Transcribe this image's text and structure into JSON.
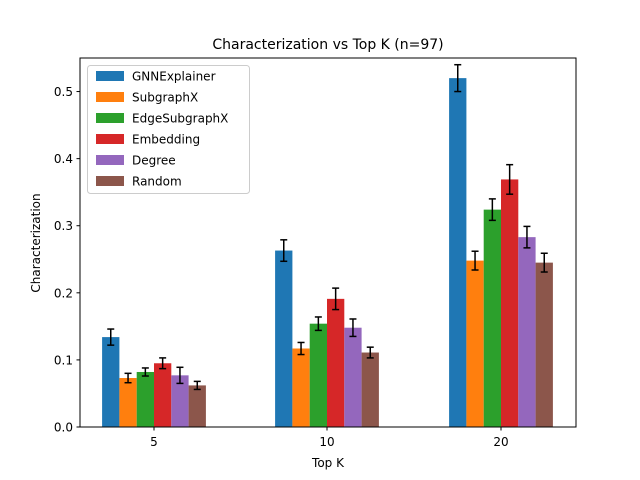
{
  "chart_data": {
    "type": "bar",
    "title": "Characterization vs Top K (n=97)",
    "xlabel": "Top K",
    "ylabel": "Characterization",
    "categories": [
      "5",
      "10",
      "20"
    ],
    "ylim": [
      0,
      0.55
    ],
    "yticks": [
      0.0,
      0.1,
      0.2,
      0.3,
      0.4,
      0.5
    ],
    "ytick_labels": [
      "0.0",
      "0.1",
      "0.2",
      "0.3",
      "0.4",
      "0.5"
    ],
    "grid": false,
    "legend_position": "top-left",
    "series": [
      {
        "name": "GNNExplainer",
        "color": "#1f77b4",
        "values": [
          0.134,
          0.263,
          0.52
        ],
        "errors": [
          0.012,
          0.016,
          0.02
        ]
      },
      {
        "name": "SubgraphX",
        "color": "#ff7f0e",
        "values": [
          0.073,
          0.117,
          0.248
        ],
        "errors": [
          0.007,
          0.009,
          0.014
        ]
      },
      {
        "name": "EdgeSubgraphX",
        "color": "#2ca02c",
        "values": [
          0.082,
          0.154,
          0.324
        ],
        "errors": [
          0.006,
          0.01,
          0.016
        ]
      },
      {
        "name": "Embedding",
        "color": "#d62728",
        "values": [
          0.095,
          0.191,
          0.369
        ],
        "errors": [
          0.008,
          0.016,
          0.022
        ]
      },
      {
        "name": "Degree",
        "color": "#9467bd",
        "values": [
          0.077,
          0.148,
          0.283
        ],
        "errors": [
          0.012,
          0.013,
          0.016
        ]
      },
      {
        "name": "Random",
        "color": "#8c564b",
        "values": [
          0.062,
          0.111,
          0.245
        ],
        "errors": [
          0.006,
          0.008,
          0.014
        ]
      }
    ]
  }
}
